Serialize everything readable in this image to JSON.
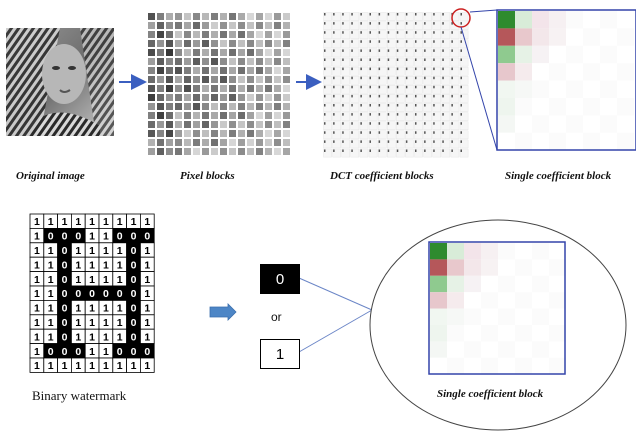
{
  "captions": {
    "original": "Original image",
    "pixel_blocks": "Pixel blocks",
    "dct_blocks": "DCT coefficient blocks",
    "single_block_top": "Single coefficient block",
    "binary_watermark": "Binary watermark",
    "single_block_bottom": "Single coefficient block"
  },
  "bits": {
    "zero": "0",
    "or": "or",
    "one": "1"
  },
  "watermark_rows": [
    "111111111",
    "100011000",
    "110111101",
    "110111101",
    "110111101",
    "110000001",
    "110111101",
    "110111101",
    "110111101",
    "100011000",
    "111111111"
  ],
  "colors": {
    "arrow": "#3b5fc0",
    "frame": "#3344aa",
    "highlight_circle": "#cc2222",
    "coef_green_dark": "#2e8b2e",
    "coef_red": "#b5575a",
    "coef_green_light": "#8fca8f",
    "block_arrow": "#4d86c6"
  }
}
